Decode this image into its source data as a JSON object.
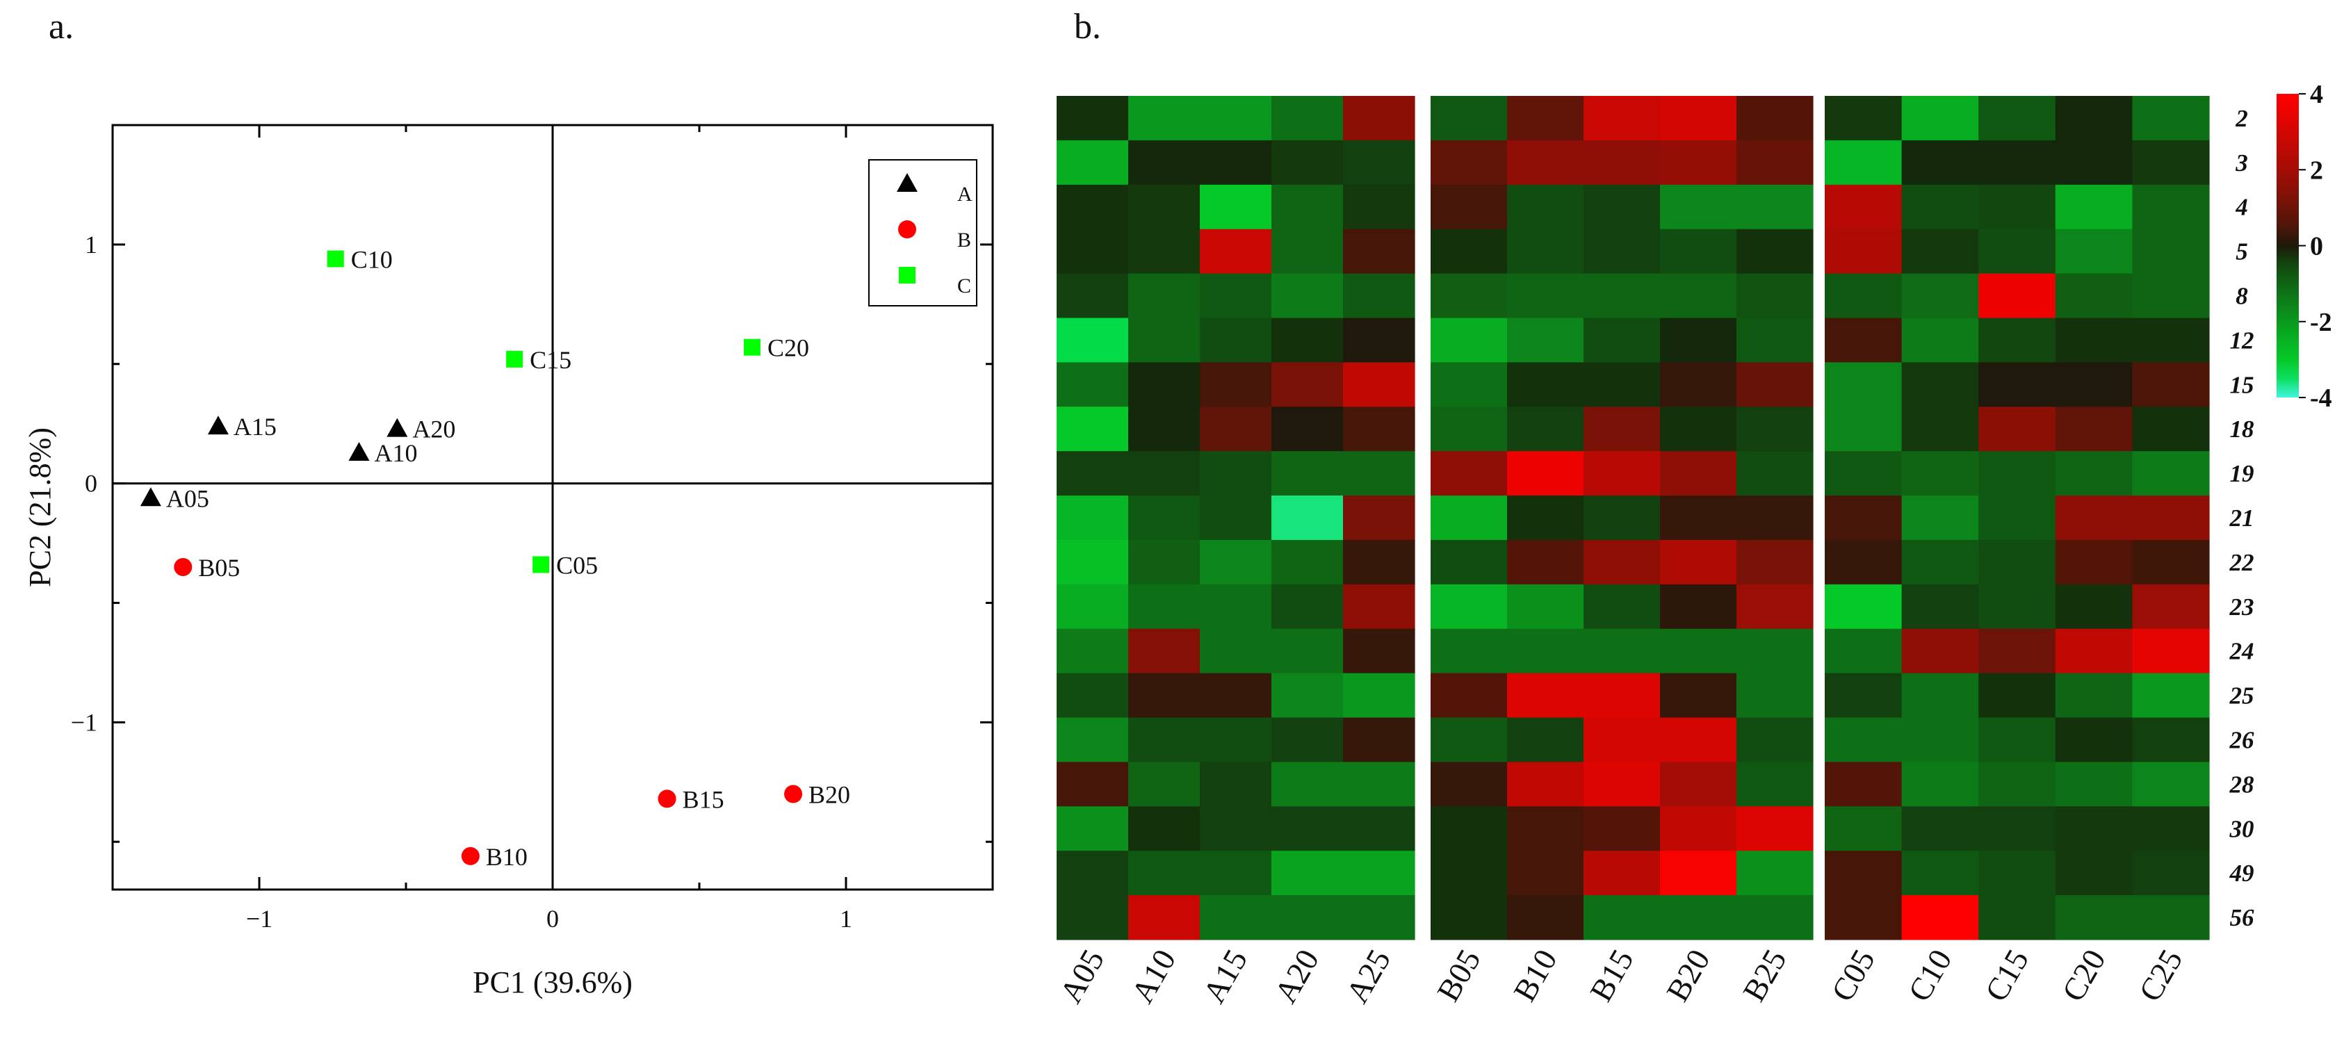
{
  "figure": {
    "label_a": "a.",
    "label_b": "b."
  },
  "chart_data": [
    {
      "type": "scatter",
      "title": "",
      "xlabel": "PC1 (39.6%)",
      "ylabel": "PC2 (21.8%)",
      "xlim": [
        -1.5,
        1.5
      ],
      "ylim": [
        -1.7,
        1.5
      ],
      "xticks": [
        -1,
        0,
        1
      ],
      "xtick_labels": [
        "−1",
        "0",
        "1"
      ],
      "yticks": [
        1,
        0,
        -1
      ],
      "ytick_labels": [
        "1",
        "0",
        "−1"
      ],
      "legend_position": "top-right",
      "series": [
        {
          "name": "A",
          "marker": "triangle",
          "color": "#000000",
          "points": [
            {
              "label": "A05",
              "x": -1.37,
              "y": -0.06
            },
            {
              "label": "A15",
              "x": -1.14,
              "y": 0.24
            },
            {
              "label": "A20",
              "x": -0.53,
              "y": 0.23
            },
            {
              "label": "A10",
              "x": -0.66,
              "y": 0.13
            }
          ]
        },
        {
          "name": "B",
          "marker": "circle",
          "color": "#ff0000",
          "points": [
            {
              "label": "B05",
              "x": -1.26,
              "y": -0.35
            },
            {
              "label": "B10",
              "x": -0.28,
              "y": -1.56
            },
            {
              "label": "B15",
              "x": 0.39,
              "y": -1.32
            },
            {
              "label": "B20",
              "x": 0.82,
              "y": -1.3
            }
          ]
        },
        {
          "name": "C",
          "marker": "square",
          "color": "#00ff00",
          "points": [
            {
              "label": "C10",
              "x": -0.74,
              "y": 0.94
            },
            {
              "label": "C15",
              "x": -0.13,
              "y": 0.52
            },
            {
              "label": "C20",
              "x": 0.68,
              "y": 0.57
            },
            {
              "label": "C05",
              "x": -0.04,
              "y": -0.34
            }
          ]
        }
      ]
    },
    {
      "type": "heatmap",
      "title": "",
      "row_labels": [
        "2",
        "3",
        "4",
        "5",
        "8",
        "12",
        "15",
        "18",
        "19",
        "21",
        "22",
        "23",
        "24",
        "25",
        "26",
        "28",
        "30",
        "49",
        "56"
      ],
      "column_groups": [
        {
          "name": "A",
          "columns": [
            "A05",
            "A10",
            "A15",
            "A20",
            "A25"
          ]
        },
        {
          "name": "B",
          "columns": [
            "B05",
            "B10",
            "B15",
            "B20",
            "B25"
          ]
        },
        {
          "name": "C",
          "columns": [
            "C05",
            "C10",
            "C15",
            "C20",
            "C25"
          ]
        }
      ],
      "values": [
        [
          -0.2,
          -2.0,
          -2.0,
          -1.2,
          1.5,
          -0.8,
          0.8,
          2.8,
          3.0,
          0.6,
          -0.3,
          -2.4,
          -0.8,
          -0.1,
          -1.2
        ],
        [
          -2.4,
          -0.1,
          -0.1,
          -0.3,
          -0.4,
          0.8,
          1.6,
          1.6,
          1.7,
          0.9,
          -2.6,
          -0.1,
          -0.1,
          -0.1,
          -0.3
        ],
        [
          -0.2,
          -0.3,
          -3.0,
          -1.0,
          -0.3,
          0.4,
          -0.6,
          -0.4,
          -1.6,
          -1.6,
          2.4,
          -0.6,
          -0.5,
          -2.4,
          -1.0
        ],
        [
          -0.2,
          -0.3,
          2.8,
          -1.0,
          0.4,
          -0.2,
          -0.6,
          -0.4,
          -0.6,
          -0.2,
          2.2,
          -0.3,
          -0.6,
          -1.6,
          -1.0
        ],
        [
          -0.4,
          -1.0,
          -0.8,
          -1.4,
          -0.8,
          -0.9,
          -1.0,
          -1.0,
          -1.0,
          -0.7,
          -0.8,
          -1.1,
          3.6,
          -0.9,
          -1.0
        ],
        [
          -3.4,
          -1.0,
          -0.6,
          -0.2,
          0.0,
          -2.4,
          -1.6,
          -0.6,
          -0.1,
          -0.8,
          0.4,
          -1.4,
          -0.5,
          -0.2,
          -0.2
        ],
        [
          -1.2,
          -0.1,
          0.4,
          1.2,
          2.6,
          -1.2,
          -0.2,
          -0.2,
          0.2,
          0.9,
          -1.6,
          -0.3,
          0.0,
          0.0,
          0.5
        ],
        [
          -3.0,
          -0.1,
          0.8,
          0.0,
          0.4,
          -1.0,
          -0.4,
          1.2,
          -0.2,
          -0.4,
          -1.6,
          -0.3,
          1.5,
          0.8,
          -0.2
        ],
        [
          -0.4,
          -0.4,
          -0.6,
          -1.0,
          -1.0,
          1.6,
          3.6,
          2.4,
          1.6,
          -0.6,
          -0.8,
          -1.0,
          -0.8,
          -1.0,
          -1.4
        ],
        [
          -2.6,
          -0.8,
          -0.6,
          -3.6,
          1.2,
          -2.4,
          -0.2,
          -0.4,
          0.2,
          0.2,
          0.4,
          -1.6,
          -0.8,
          1.6,
          1.6
        ],
        [
          -2.8,
          -0.9,
          -1.6,
          -1.0,
          0.2,
          -0.6,
          0.6,
          1.6,
          2.2,
          1.2,
          0.2,
          -0.8,
          -0.6,
          0.6,
          0.3
        ],
        [
          -2.4,
          -1.2,
          -1.2,
          -0.6,
          1.6,
          -2.6,
          -1.8,
          -0.6,
          0.1,
          1.8,
          -3.0,
          -0.4,
          -0.6,
          -0.2,
          1.8
        ],
        [
          -1.4,
          1.4,
          -1.2,
          -1.2,
          0.2,
          -1.2,
          -1.2,
          -1.2,
          -1.2,
          -1.2,
          -1.2,
          1.6,
          1.0,
          2.6,
          3.4
        ],
        [
          -0.6,
          0.2,
          0.2,
          -1.6,
          -2.0,
          0.6,
          3.2,
          3.2,
          0.2,
          -1.2,
          -0.4,
          -1.2,
          -0.2,
          -1.0,
          -2.0
        ],
        [
          -1.6,
          -0.6,
          -0.6,
          -0.4,
          0.2,
          -0.8,
          -0.4,
          3.0,
          3.0,
          -0.6,
          -1.2,
          -1.2,
          -0.8,
          -0.2,
          -0.4
        ],
        [
          0.4,
          -1.0,
          -0.4,
          -1.4,
          -1.4,
          0.2,
          2.6,
          3.2,
          2.0,
          -0.8,
          0.6,
          -1.4,
          -1.0,
          -1.2,
          -1.6
        ],
        [
          -1.8,
          -0.2,
          -0.4,
          -0.4,
          -0.4,
          -0.2,
          0.4,
          0.6,
          2.6,
          3.2,
          -1.0,
          -0.4,
          -0.4,
          -0.3,
          -0.3
        ],
        [
          -0.4,
          -0.8,
          -0.8,
          -2.2,
          -2.2,
          -0.2,
          0.4,
          2.4,
          3.8,
          -1.8,
          0.4,
          -0.8,
          -0.6,
          -0.3,
          -0.4
        ],
        [
          -0.4,
          2.8,
          -1.2,
          -1.2,
          -1.2,
          -0.2,
          0.2,
          -1.2,
          -1.2,
          -1.2,
          0.4,
          4.0,
          -0.6,
          -1.0,
          -1.0
        ]
      ],
      "scale": {
        "min": -4,
        "max": 4,
        "ticks": [
          "4",
          "2",
          "0",
          "-2",
          "-4"
        ]
      }
    }
  ]
}
